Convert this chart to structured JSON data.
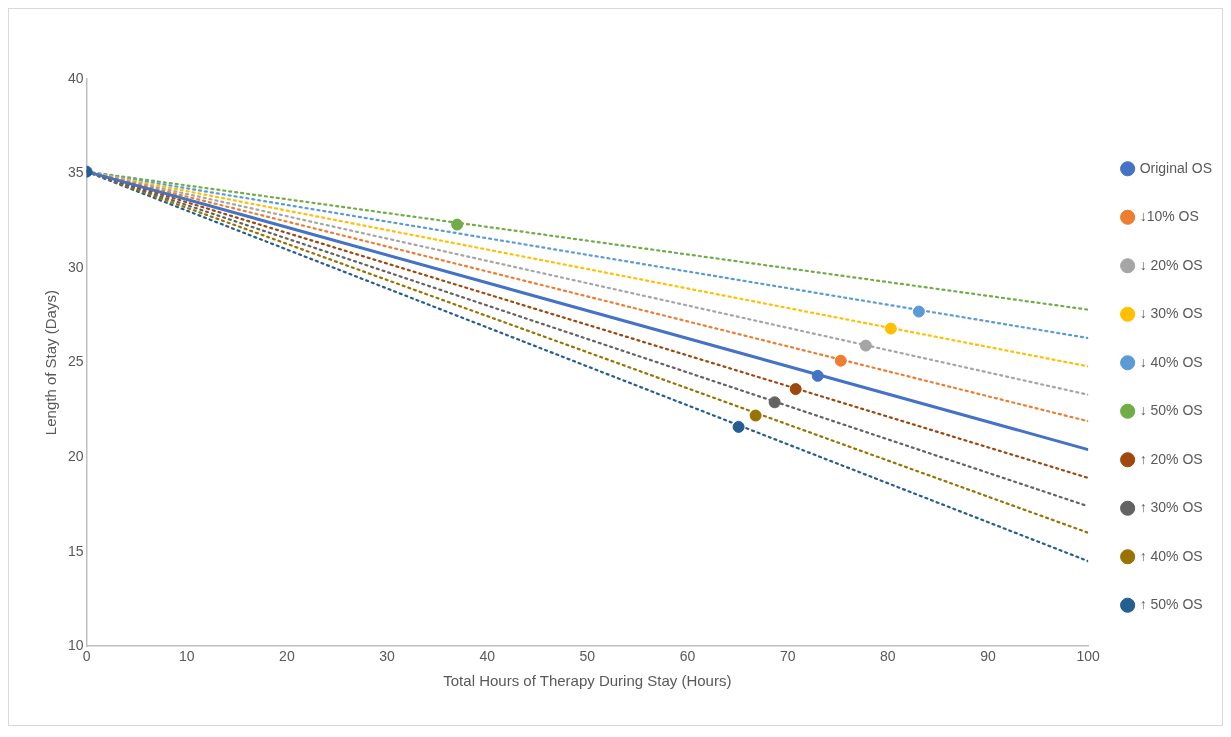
{
  "chart_data": {
    "type": "scatter",
    "xlabel": "Total Hours of Therapy During Stay (Hours)",
    "ylabel": "Length of Stay (Days)",
    "xlim": [
      0,
      100
    ],
    "xticks": [
      0,
      10,
      20,
      30,
      40,
      50,
      60,
      70,
      80,
      90,
      100
    ],
    "ylim": [
      10,
      40
    ],
    "yticks": [
      10,
      15,
      20,
      25,
      30,
      35,
      40
    ],
    "grid": false,
    "legend": "right",
    "series": [
      {
        "name": "Original OS",
        "marker": "circle",
        "color": "#4472c4",
        "x": [
          73.0
        ],
        "values": [
          24.3
        ]
      },
      {
        "name": "↓10% OS",
        "marker": "circle",
        "color": "#ed7d31",
        "x": [
          75.3
        ],
        "values": [
          25.1
        ]
      },
      {
        "name": "↓ 20% OS",
        "marker": "circle",
        "color": "#a5a5a5",
        "x": [
          77.8
        ],
        "values": [
          25.9
        ]
      },
      {
        "name": "↓ 30% OS",
        "marker": "circle",
        "color": "#ffc000",
        "x": [
          80.3
        ],
        "values": [
          26.8
        ]
      },
      {
        "name": "↓ 40% OS",
        "marker": "circle",
        "color": "#5b9bd5",
        "x": [
          83.1
        ],
        "values": [
          27.7
        ]
      },
      {
        "name": "↓ 50% OS",
        "marker": "circle",
        "color": "#70ad47",
        "x": [
          37.0
        ],
        "values": [
          32.3
        ]
      },
      {
        "name": "↑ 20% OS",
        "marker": "circle",
        "color": "#9e480e",
        "x": [
          70.8
        ],
        "values": [
          23.6
        ]
      },
      {
        "name": "↑ 30% OS",
        "marker": "circle",
        "color": "#636363",
        "x": [
          68.7
        ],
        "values": [
          22.9
        ]
      },
      {
        "name": "↑ 40% OS",
        "marker": "circle",
        "color": "#997300",
        "x": [
          66.8
        ],
        "values": [
          22.2
        ]
      },
      {
        "name": "↑ 50% OS",
        "marker": "circle",
        "color": "#255e91",
        "x": [
          0,
          65.1
        ],
        "values": [
          35.1,
          21.6
        ]
      },
      {
        "type": "line",
        "marker": "none",
        "line_style": "solid",
        "color": "#4472c4",
        "x": [
          0,
          100
        ],
        "values": [
          35.1,
          20.4
        ]
      },
      {
        "type": "line",
        "marker": "none",
        "line_style": "dotted",
        "color": "#ed7d31",
        "x": [
          0,
          100
        ],
        "values": [
          35.1,
          21.9
        ]
      },
      {
        "type": "line",
        "marker": "none",
        "line_style": "dotted",
        "color": "#a5a5a5",
        "x": [
          0,
          100
        ],
        "values": [
          35.1,
          23.3
        ]
      },
      {
        "type": "line",
        "marker": "none",
        "line_style": "dotted",
        "color": "#ffc000",
        "x": [
          0,
          100
        ],
        "values": [
          35.1,
          24.8
        ]
      },
      {
        "type": "line",
        "marker": "none",
        "line_style": "dotted",
        "color": "#5b9bd5",
        "x": [
          0,
          100
        ],
        "values": [
          35.1,
          26.3
        ]
      },
      {
        "type": "line",
        "marker": "none",
        "line_style": "dotted",
        "color": "#70ad47",
        "x": [
          0,
          100
        ],
        "values": [
          35.1,
          27.8
        ]
      },
      {
        "type": "line",
        "marker": "none",
        "line_style": "dotted",
        "color": "#9e480e",
        "x": [
          0,
          100
        ],
        "values": [
          35.1,
          18.9
        ]
      },
      {
        "type": "line",
        "marker": "none",
        "line_style": "dotted",
        "color": "#636363",
        "x": [
          0,
          100
        ],
        "values": [
          35.1,
          17.4
        ]
      },
      {
        "type": "line",
        "marker": "none",
        "line_style": "dotted",
        "color": "#997300",
        "x": [
          0,
          100
        ],
        "values": [
          35.1,
          16.0
        ]
      },
      {
        "type": "line",
        "marker": "none",
        "line_style": "dotted",
        "color": "#255e91",
        "x": [
          0,
          100
        ],
        "values": [
          35.1,
          14.5
        ]
      }
    ]
  }
}
